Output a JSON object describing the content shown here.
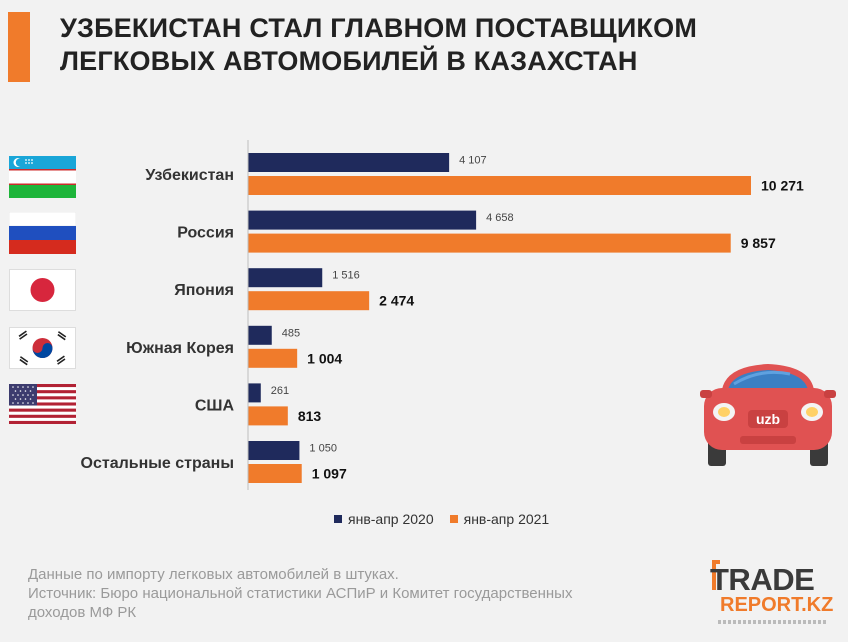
{
  "title": {
    "line1": "УЗБЕКИСТАН СТАЛ ГЛАВНОМ ПОСТАВЩИКОМ",
    "line2": "ЛЕГКОВЫХ АВТОМОБИЛЕЙ В КАЗАХСТАН"
  },
  "colors": {
    "accent": "#f07b2b",
    "series_2020": "#1f2a5c",
    "series_2021": "#f07b2b"
  },
  "chart_data": {
    "type": "bar",
    "orientation": "horizontal",
    "categories": [
      "Узбекистан",
      "Россия",
      "Япония",
      "Южная Корея",
      "США",
      "Остальные страны"
    ],
    "series": [
      {
        "name": "янв-апр 2020",
        "values": [
          4107,
          4658,
          1516,
          485,
          261,
          1050
        ],
        "labels": [
          "4 107",
          "4 658",
          "1 516",
          "485",
          "261",
          "1 050"
        ]
      },
      {
        "name": "янв-апр 2021",
        "values": [
          10271,
          9857,
          2474,
          1004,
          813,
          1097
        ],
        "labels": [
          "10 271",
          "9 857",
          "2 474",
          "1 004",
          "813",
          "1 097"
        ]
      }
    ],
    "legend_position": "bottom",
    "grid": false
  },
  "legend": {
    "item_2020": "янв-апр 2020",
    "item_2021": "янв-апр 2021"
  },
  "flags": [
    "uzbekistan-flag-icon",
    "russia-flag-icon",
    "japan-flag-icon",
    "south-korea-flag-icon",
    "usa-flag-icon"
  ],
  "car_badge": "uzb",
  "footnote": {
    "line1": "Данные по импорту легковых автомобилей в штуках.",
    "line2": "Источник: Бюро национальной статистики АСПиР и Комитет государственных",
    "line3": "доходов МФ РК"
  },
  "logo": {
    "trade": "TRADE",
    "report": "REPORT.KZ"
  }
}
